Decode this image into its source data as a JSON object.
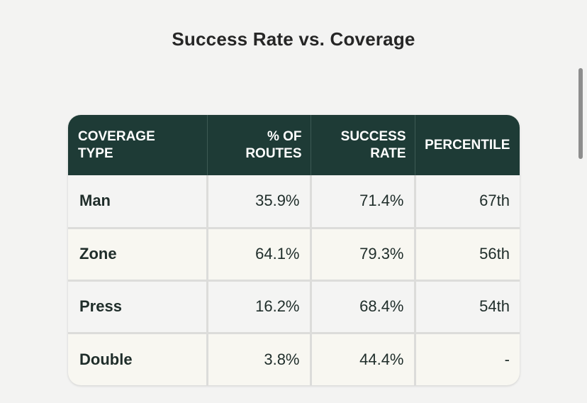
{
  "title": "Success Rate vs. Coverage",
  "table": {
    "headers": {
      "coverage_type": [
        "COVERAGE",
        "TYPE"
      ],
      "pct_routes": [
        "% OF",
        "ROUTES"
      ],
      "success_rate": [
        "SUCCESS",
        "RATE"
      ],
      "percentile": "PERCENTILE"
    },
    "rows": [
      {
        "coverage": "Man",
        "pct_routes": "35.9%",
        "success_rate": "71.4%",
        "percentile": "67th"
      },
      {
        "coverage": "Zone",
        "pct_routes": "64.1%",
        "success_rate": "79.3%",
        "percentile": "56th"
      },
      {
        "coverage": "Press",
        "pct_routes": "16.2%",
        "success_rate": "68.4%",
        "percentile": "54th"
      },
      {
        "coverage": "Double",
        "pct_routes": "3.8%",
        "success_rate": "44.4%",
        "percentile": "-"
      }
    ]
  },
  "colors": {
    "header_bg": "#1e3b36",
    "header_text": "#ffffff",
    "page_bg": "#f3f3f2",
    "cell_text": "#1f2d2a"
  }
}
